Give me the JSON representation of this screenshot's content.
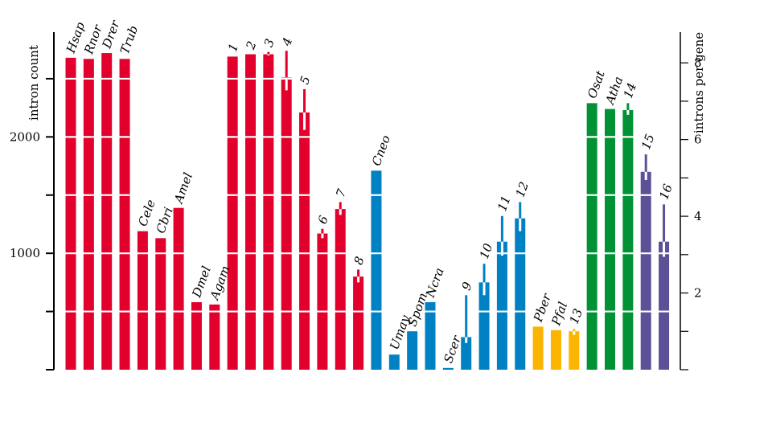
{
  "chart_data": {
    "type": "bar",
    "left_axis": {
      "label": "intron count",
      "ticks": [
        "1000",
        "2000"
      ],
      "ylim": [
        0,
        2900
      ]
    },
    "right_axis": {
      "label": "introns per gene",
      "ticks": [
        "2",
        "4",
        "6",
        "8"
      ],
      "ylim": [
        0,
        8.8
      ]
    },
    "grid": "horizontal white lines every 500 intron counts",
    "colors": {
      "red": "#e2002c",
      "blue": "#0081c3",
      "yellow": "#fbb400",
      "green": "#009235",
      "purple": "#5c5196"
    },
    "bars": [
      {
        "label": "Hsap",
        "value": 2680,
        "color": "red"
      },
      {
        "label": "Rnor",
        "value": 2670,
        "color": "red"
      },
      {
        "label": "Drer",
        "value": 2720,
        "color": "red"
      },
      {
        "label": "Trub",
        "value": 2670,
        "color": "red"
      },
      {
        "label": "Cele",
        "value": 1190,
        "color": "red"
      },
      {
        "label": "Cbri",
        "value": 1130,
        "color": "red"
      },
      {
        "label": "Amel",
        "value": 1390,
        "color": "red"
      },
      {
        "label": "Dmel",
        "value": 580,
        "color": "red"
      },
      {
        "label": "Agam",
        "value": 560,
        "color": "red"
      },
      {
        "label": "1",
        "value": 2690,
        "color": "red"
      },
      {
        "label": "2",
        "value": 2710,
        "color": "red"
      },
      {
        "label": "3",
        "value": 2710,
        "color": "red",
        "range": [
          2700,
          2730
        ]
      },
      {
        "label": "4",
        "value": 2510,
        "color": "red",
        "range": [
          2400,
          2740
        ]
      },
      {
        "label": "5",
        "value": 2210,
        "color": "red",
        "range": [
          2060,
          2410
        ]
      },
      {
        "label": "6",
        "value": 1170,
        "color": "red",
        "range": [
          1130,
          1210
        ]
      },
      {
        "label": "7",
        "value": 1380,
        "color": "red",
        "range": [
          1330,
          1440
        ]
      },
      {
        "label": "8",
        "value": 800,
        "color": "red",
        "range": [
          750,
          860
        ]
      },
      {
        "label": "Cneo",
        "value": 1710,
        "color": "blue"
      },
      {
        "label": "Umay",
        "value": 130,
        "color": "blue"
      },
      {
        "label": "Spom",
        "value": 330,
        "color": "blue"
      },
      {
        "label": "Ncra",
        "value": 580,
        "color": "blue"
      },
      {
        "label": "Scer",
        "value": 15,
        "color": "blue"
      },
      {
        "label": "9",
        "value": 280,
        "color": "blue",
        "range": [
          230,
          640
        ]
      },
      {
        "label": "10",
        "value": 750,
        "color": "blue",
        "range": [
          640,
          910
        ]
      },
      {
        "label": "11",
        "value": 1100,
        "color": "blue",
        "range": [
          980,
          1320
        ]
      },
      {
        "label": "12",
        "value": 1300,
        "color": "blue",
        "range": [
          1190,
          1440
        ]
      },
      {
        "label": "Pber",
        "value": 370,
        "color": "yellow"
      },
      {
        "label": "Pfal",
        "value": 340,
        "color": "yellow"
      },
      {
        "label": "13",
        "value": 330,
        "color": "yellow",
        "range": [
          300,
          350
        ]
      },
      {
        "label": "Osat",
        "value": 2290,
        "color": "green"
      },
      {
        "label": "Atha",
        "value": 2240,
        "color": "green"
      },
      {
        "label": "14",
        "value": 2230,
        "color": "green",
        "range": [
          2190,
          2290
        ]
      },
      {
        "label": "15",
        "value": 1700,
        "color": "purple",
        "range": [
          1630,
          1850
        ]
      },
      {
        "label": "16",
        "value": 1100,
        "color": "purple",
        "range": [
          970,
          1420
        ]
      }
    ]
  }
}
